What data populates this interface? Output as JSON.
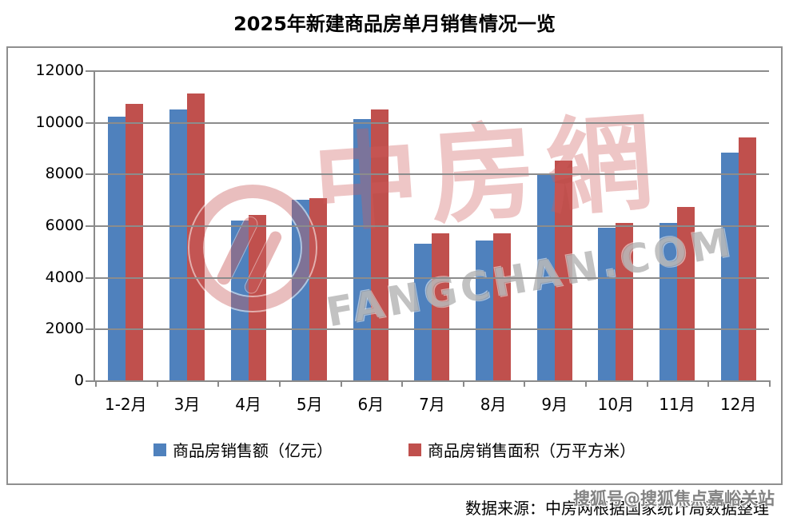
{
  "title": "2025年新建商品房单月销售情况一览",
  "chart_data": {
    "type": "bar",
    "title": "2025年新建商品房单月销售情况一览",
    "categories": [
      "1-2月",
      "3月",
      "4月",
      "5月",
      "6月",
      "7月",
      "8月",
      "9月",
      "10月",
      "11月",
      "12月"
    ],
    "series": [
      {
        "name": "商品房销售额（亿元）",
        "color": "#4F81BD",
        "values": [
          10200,
          10500,
          6200,
          7000,
          10100,
          5300,
          5400,
          8000,
          5900,
          6100,
          8800
        ]
      },
      {
        "name": "商品房销售面积（万平方米）",
        "color": "#C0504D",
        "values": [
          10700,
          11100,
          6400,
          7050,
          10500,
          5700,
          5700,
          8500,
          6100,
          6700,
          9400
        ]
      }
    ],
    "xlabel": "",
    "ylabel": "",
    "ylim": [
      0,
      12000
    ],
    "ytick_interval": 2000,
    "ytick_labels": [
      "12000",
      "10000",
      "8000",
      "6000",
      "4000",
      "2000",
      "0"
    ],
    "grid": true,
    "legend_position": "bottom"
  },
  "watermark": {
    "logo_cn": "中房網",
    "logo_en": "FANGCHAN.COM",
    "account": "搜狐号@搜狐焦点嘉峪关站"
  },
  "source": {
    "text": "数据来源：中房网根据国家统计局数据整理"
  },
  "colors": {
    "bar_blue": "#4F81BD",
    "bar_red": "#C0504D",
    "gridline": "#8C8C8C",
    "frame_border": "#8F8F8F",
    "watermark_pink": "#CE5C5C",
    "watermark_gray": "#808080"
  }
}
